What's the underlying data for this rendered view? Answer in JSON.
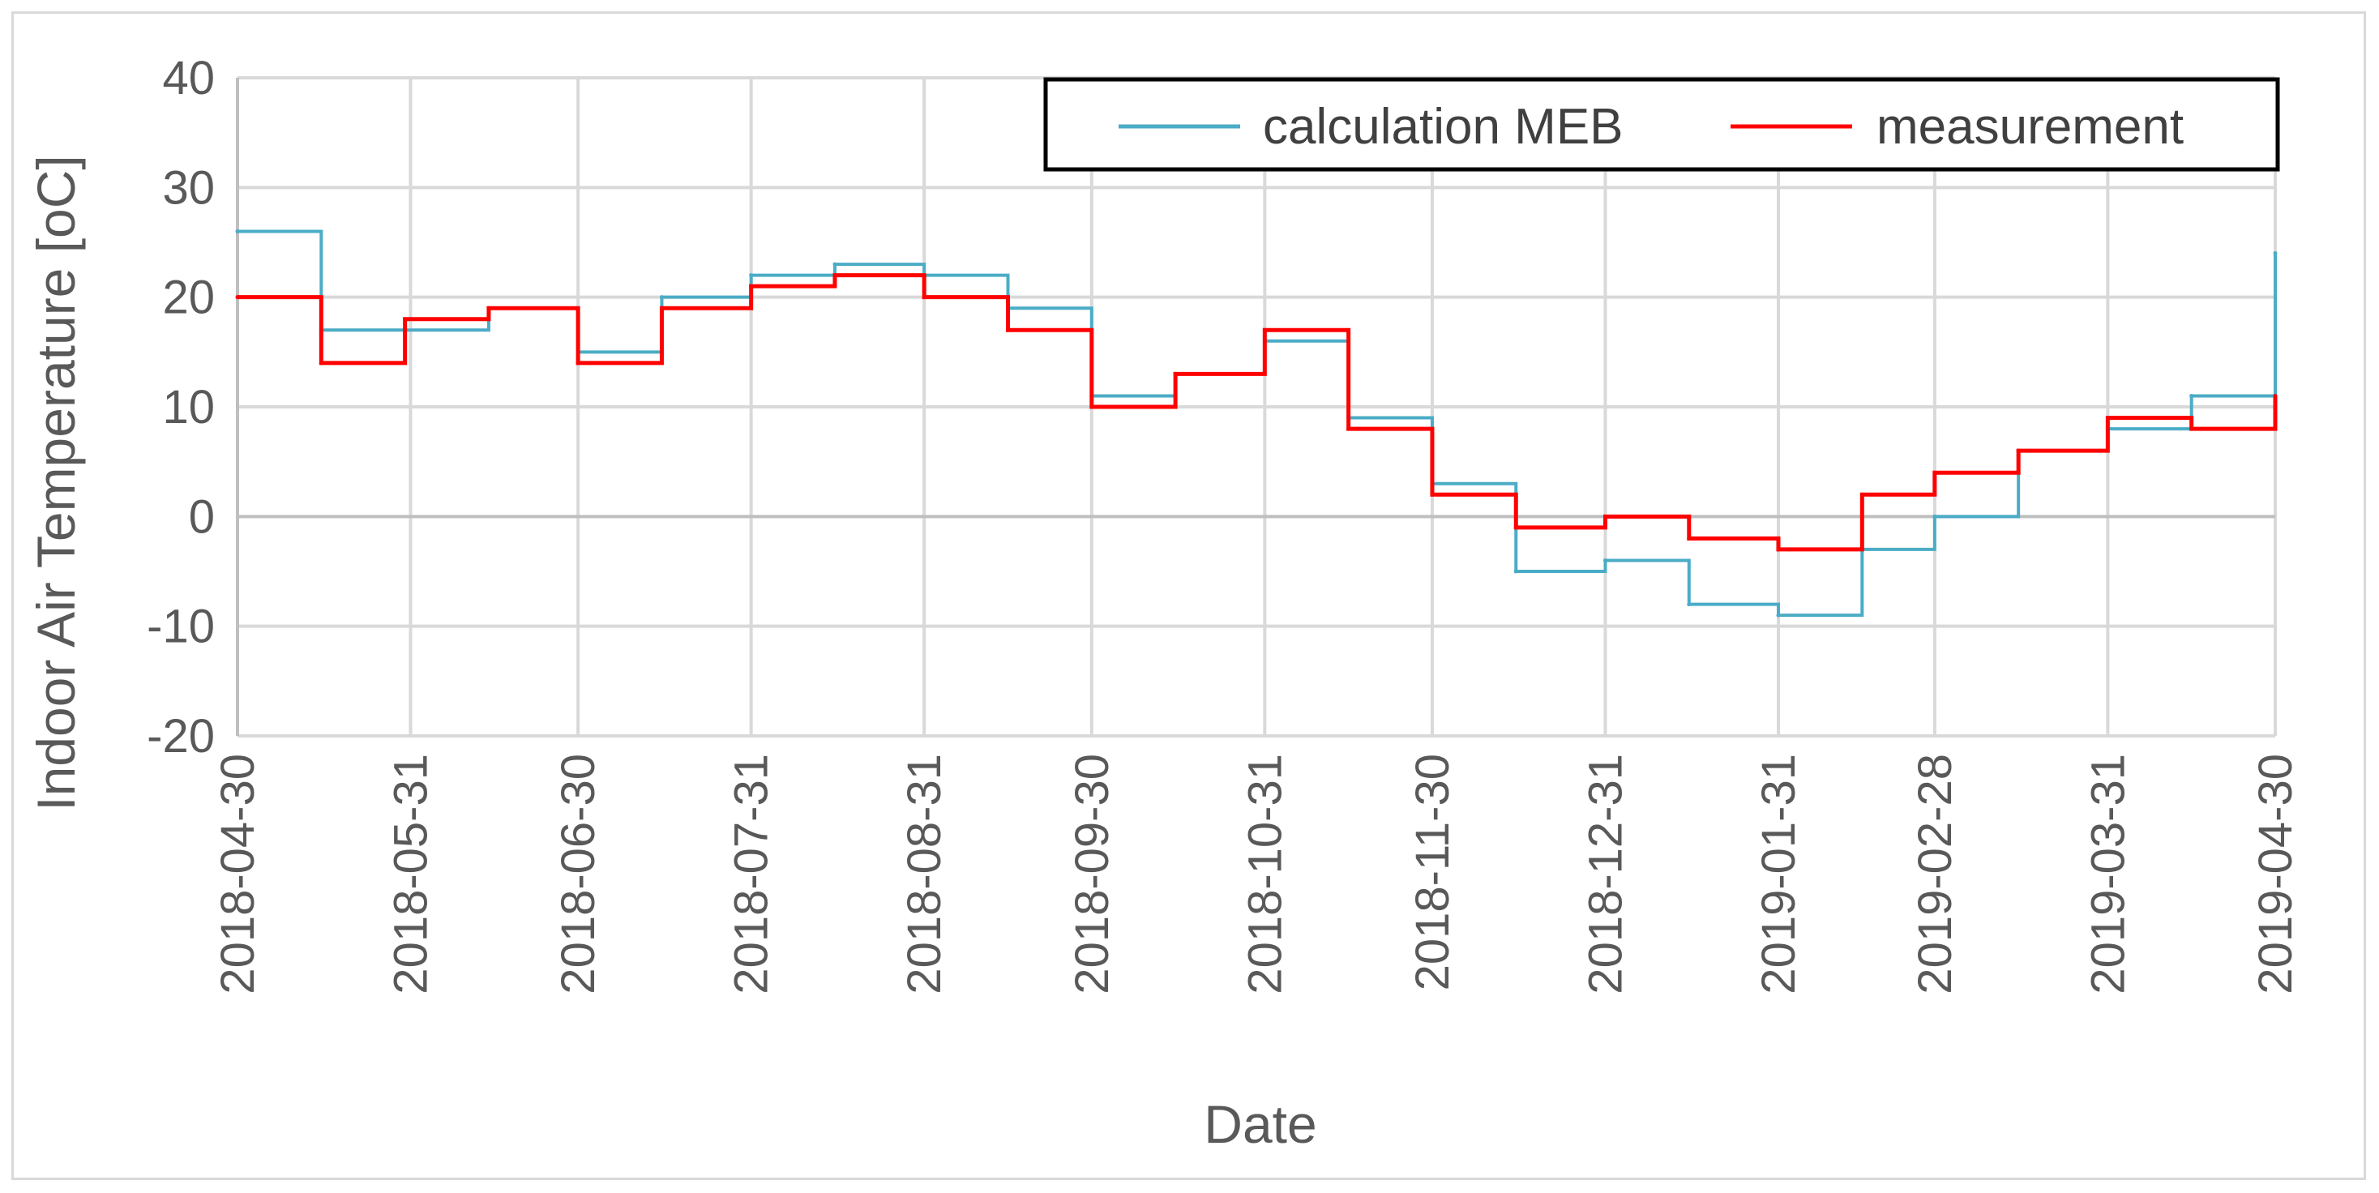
{
  "chart_data": {
    "type": "line",
    "title": "",
    "xlabel": "Date",
    "ylabel": "Indoor Air Temperature [oC]",
    "ylim": [
      -20,
      40
    ],
    "yticks": [
      -20,
      -10,
      0,
      10,
      20,
      30,
      40
    ],
    "grid": true,
    "legend_position": "top-right",
    "x_tick_labels": [
      "2018-04-30",
      "2018-05-31",
      "2018-06-30",
      "2018-07-31",
      "2018-08-31",
      "2018-09-30",
      "2018-10-31",
      "2018-11-30",
      "2018-12-31",
      "2019-01-31",
      "2019-02-28",
      "2019-03-31",
      "2019-04-30"
    ],
    "x_days": [
      0,
      31,
      61,
      92,
      123,
      153,
      184,
      214,
      245,
      276,
      304,
      335,
      365
    ],
    "x_range_days": [
      0,
      365
    ],
    "series": [
      {
        "name": "calculation MEB",
        "color": "#4bacc6",
        "days": [
          0,
          15,
          30,
          45,
          61,
          76,
          92,
          107,
          123,
          138,
          153,
          168,
          184,
          199,
          214,
          229,
          245,
          260,
          276,
          291,
          304,
          319,
          335,
          350,
          365
        ],
        "values": [
          26,
          17,
          17,
          19,
          15,
          20,
          22,
          23,
          22,
          19,
          11,
          13,
          16,
          9,
          3,
          -5,
          -4,
          -8,
          -9,
          -3,
          0,
          6,
          8,
          11,
          24
        ]
      },
      {
        "name": "measurement",
        "color": "#ff0000",
        "days": [
          0,
          15,
          30,
          45,
          61,
          76,
          92,
          107,
          123,
          138,
          153,
          168,
          184,
          199,
          214,
          229,
          245,
          260,
          276,
          291,
          304,
          319,
          335,
          350,
          365
        ],
        "values": [
          20,
          14,
          18,
          19,
          14,
          19,
          21,
          22,
          20,
          17,
          10,
          13,
          17,
          8,
          2,
          -1,
          0,
          -2,
          -3,
          2,
          4,
          6,
          9,
          8,
          11
        ]
      }
    ]
  }
}
